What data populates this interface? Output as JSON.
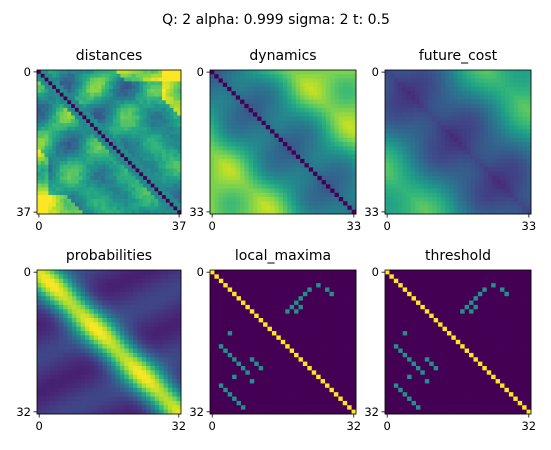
{
  "figure": {
    "suptitle": "Q: 2 alpha:      0.999 sigma:        2 t: 0.5"
  },
  "colors": {
    "viridis": [
      "#440154",
      "#482878",
      "#3e4a89",
      "#31688e",
      "#26828e",
      "#1f9e89",
      "#35b779",
      "#6ece58",
      "#b5de2b",
      "#fde725"
    ],
    "axis": "#000000",
    "background": "#ffffff"
  },
  "chart_data": [
    {
      "type": "heatmap",
      "title": "distances",
      "size": 38,
      "pattern": "distances",
      "x_ticks": [
        "0",
        "37"
      ],
      "y_ticks": [
        "0",
        "37"
      ],
      "colormap": "viridis"
    },
    {
      "type": "heatmap",
      "title": "dynamics",
      "size": 34,
      "pattern": "dynamics",
      "x_ticks": [
        "0",
        "33"
      ],
      "y_ticks": [
        "0",
        "33"
      ],
      "colormap": "viridis"
    },
    {
      "type": "heatmap",
      "title": "future_cost",
      "size": 34,
      "pattern": "future_cost",
      "x_ticks": [
        "0",
        "33"
      ],
      "y_ticks": [
        "0",
        "33"
      ],
      "colormap": "viridis"
    },
    {
      "type": "heatmap",
      "title": "probabilities",
      "size": 33,
      "pattern": "probabilities",
      "x_ticks": [
        "0",
        "32"
      ],
      "y_ticks": [
        "0",
        "32"
      ],
      "colormap": "viridis"
    },
    {
      "type": "heatmap",
      "title": "local_maxima",
      "size": 33,
      "pattern": "local_maxima",
      "x_ticks": [
        "0",
        "32"
      ],
      "y_ticks": [
        "0",
        "32"
      ],
      "colormap": "viridis",
      "value_levels": [
        0,
        0.5,
        1
      ]
    },
    {
      "type": "heatmap",
      "title": "threshold",
      "size": 33,
      "pattern": "threshold",
      "x_ticks": [
        "0",
        "32"
      ],
      "y_ticks": [
        "0",
        "32"
      ],
      "colormap": "viridis",
      "value_levels": [
        0,
        0.5,
        1
      ]
    }
  ]
}
